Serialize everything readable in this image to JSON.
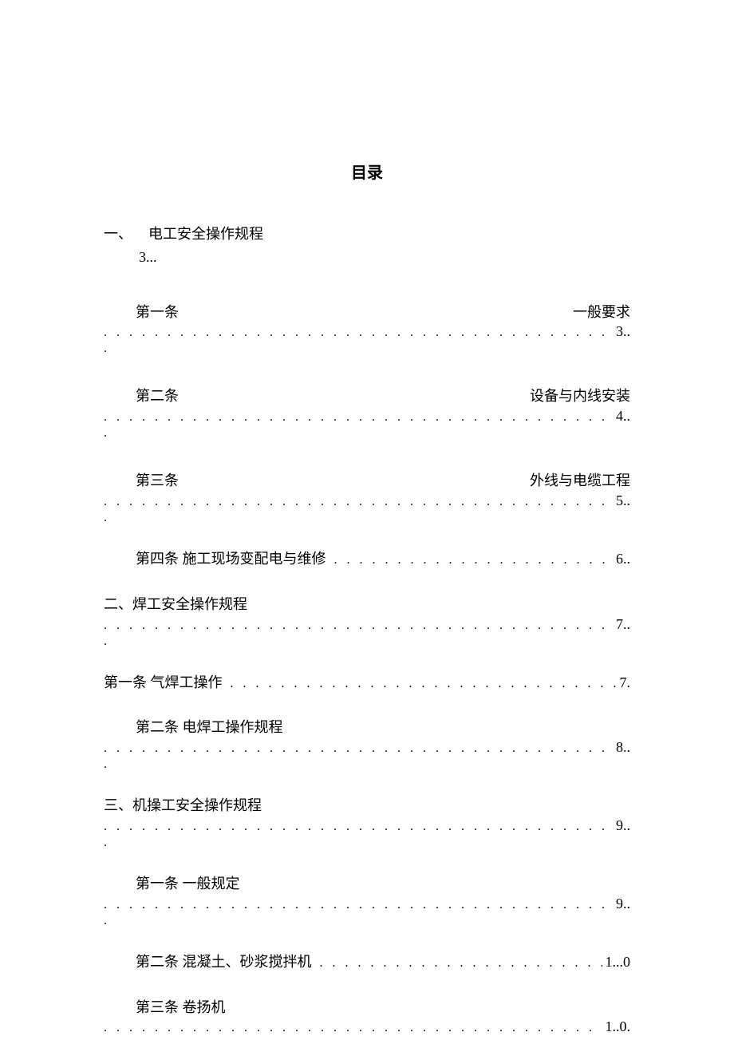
{
  "title": "目录",
  "entries": [
    {
      "type": "section-top",
      "left": "一、",
      "right": "电工安全操作规程",
      "page_line": "3..."
    },
    {
      "type": "split",
      "indent": 1,
      "left": "第一条",
      "right": "一般要求",
      "page": "3..",
      "trailing": "."
    },
    {
      "type": "split",
      "indent": 1,
      "left": "第二条",
      "right": "设备与内线安装",
      "page": "4..",
      "trailing": "."
    },
    {
      "type": "split",
      "indent": 1,
      "left": "第三条",
      "right": "外线与电缆工程",
      "page": "5..",
      "trailing": "."
    },
    {
      "type": "single",
      "indent": 1,
      "label": "第四条  施工现场变配电与维修",
      "page": "6.."
    },
    {
      "type": "multi",
      "indent": 0,
      "label": "二、焊工安全操作规程",
      "page": "7..",
      "trailing": "."
    },
    {
      "type": "single",
      "indent": 0,
      "label": "第一条  气焊工操作",
      "page": "7."
    },
    {
      "type": "multi",
      "indent": 1,
      "label": "第二条  电焊工操作规程",
      "page": "8..",
      "trailing": "."
    },
    {
      "type": "multi",
      "indent": 0,
      "label": "三、机操工安全操作规程",
      "page": "9..",
      "trailing": "."
    },
    {
      "type": "multi",
      "indent": 1,
      "label": "第一条  一般规定",
      "page": "9..",
      "trailing": "."
    },
    {
      "type": "single",
      "indent": 1,
      "label": "第二条  混凝土、砂浆搅拌机",
      "page": "1...0"
    },
    {
      "type": "multi-short",
      "indent": 1,
      "label": "第三条  卷扬机",
      "page": "1..0."
    }
  ],
  "dots": ". . . . . . . . . . . . . . . . . . . . . . . . . . . . . . . . . . . . . . . . . . . . . . . . . . . . . . . . . . . . . . . . . . . . . . . . . . . . . . . . . . . . . . . . . . . . . . . . . . . . . . . . . . . . . . . . . . . . . . . . . . . . . . . ."
}
